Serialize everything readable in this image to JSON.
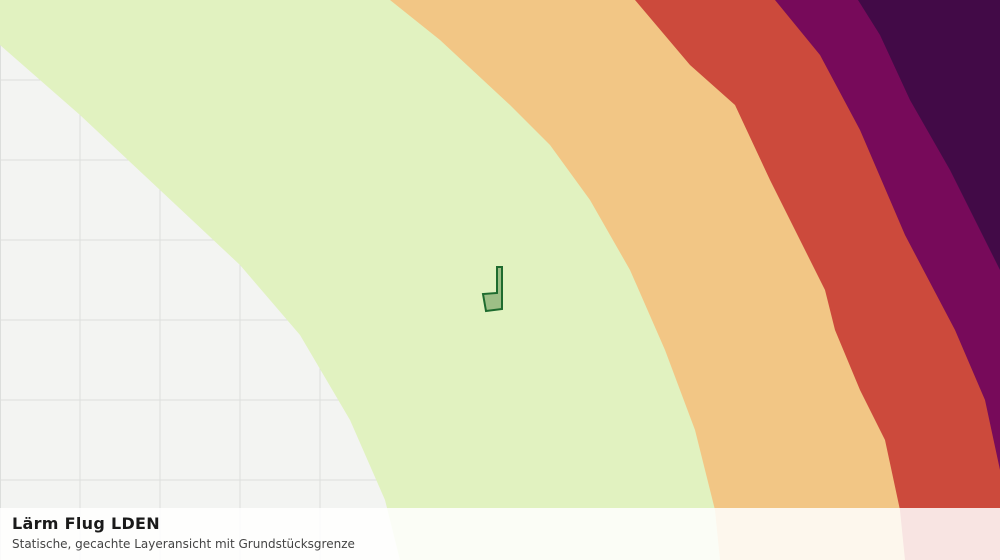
{
  "title": "Lärm Flug LDEN",
  "subtitle": "Statische, gecachte Layeransicht mit Grundstücksgrenze"
}
